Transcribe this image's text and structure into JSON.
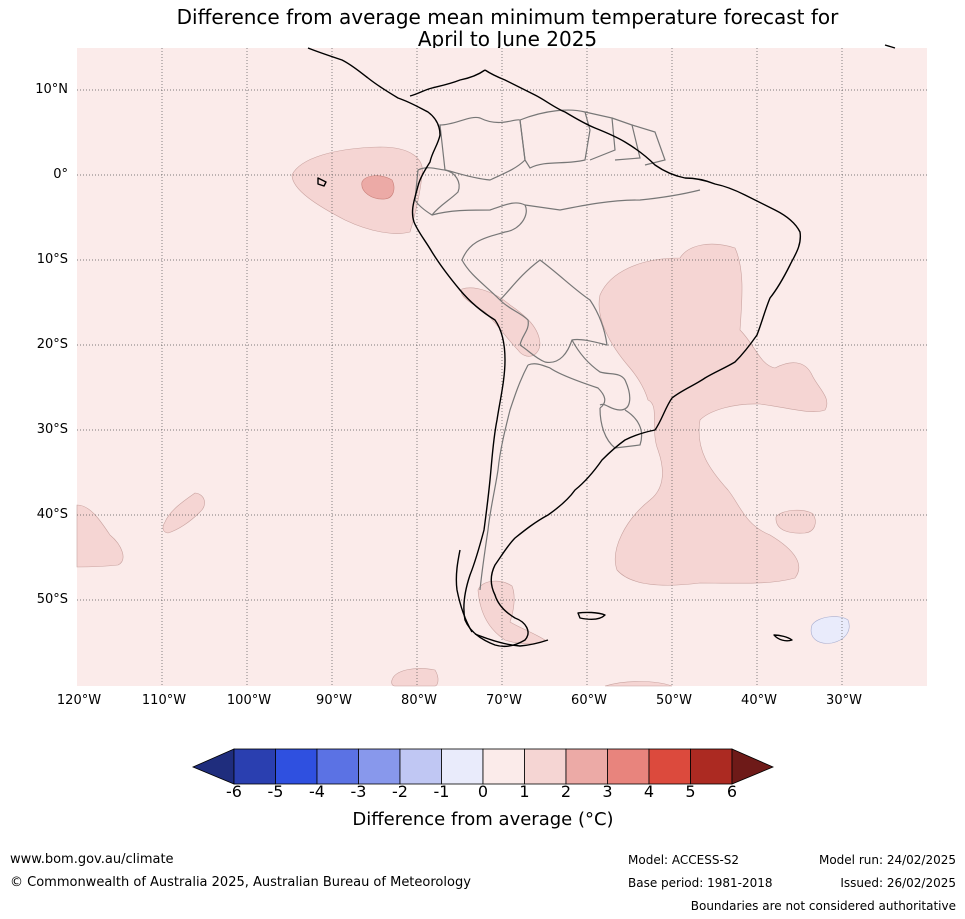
{
  "title": {
    "line1": "Difference from average mean minimum temperature forecast for",
    "line2": "April to June 2025"
  },
  "map": {
    "background_color": "#fbebea",
    "lat_labels": [
      "10°N",
      "0°",
      "10°S",
      "20°S",
      "30°S",
      "40°S",
      "50°S"
    ],
    "lon_labels": [
      "120°W",
      "110°W",
      "100°W",
      "90°W",
      "80°W",
      "70°W",
      "60°W",
      "50°W",
      "40°W",
      "30°W"
    ]
  },
  "colorbar": {
    "ticks": [
      "-6",
      "-5",
      "-4",
      "-3",
      "-2",
      "-1",
      "0",
      "1",
      "2",
      "3",
      "4",
      "5",
      "6"
    ],
    "colors": [
      "#1f2d7d",
      "#2a3fb0",
      "#2f50e0",
      "#5b72e4",
      "#8898ec",
      "#c0c7f3",
      "#e9ebfb",
      "#fbebea",
      "#f5d5d3",
      "#ecaaa6",
      "#e8847d",
      "#dc4a3d",
      "#ac2a22",
      "#6e1a18"
    ],
    "label": "Difference from average (°C)"
  },
  "footer": {
    "website": "www.bom.gov.au/climate",
    "copyright": "© Commonwealth of Australia 2025, Australian Bureau of Meteorology",
    "model": "Model: ACCESS-S2",
    "base_period": "Base period: 1981-2018",
    "model_run": "Model run: 24/02/2025",
    "issued": "Issued: 26/02/2025",
    "disclaimer": "Boundaries are not considered authoritative"
  }
}
